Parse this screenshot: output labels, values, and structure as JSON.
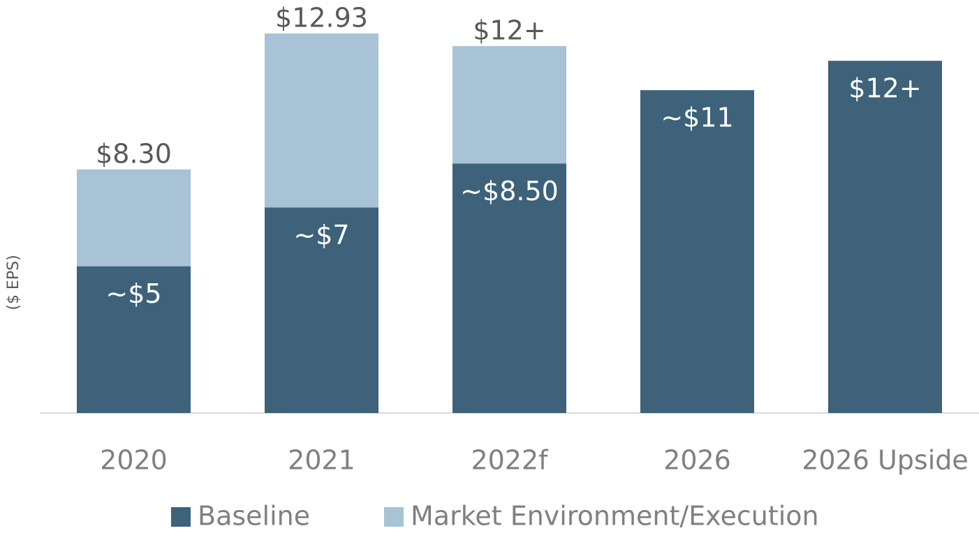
{
  "chart_data": {
    "type": "stacked_bar",
    "y_label": "($ EPS)",
    "categories": [
      "2020",
      "2021",
      "2022f",
      "2026",
      "2026 Upside"
    ],
    "series": [
      {
        "name": "Baseline",
        "color": "#3d627a",
        "values": [
          5,
          7,
          8.5,
          11,
          12
        ],
        "value_labels": [
          "~$5",
          "~$7",
          "~$8.50",
          "~$11",
          "$12+"
        ]
      },
      {
        "name": "Market Environment/Execution",
        "color": "#a8c2d6",
        "values": [
          3.3,
          5.93,
          4.0,
          null,
          null
        ]
      }
    ],
    "totals": [
      8.3,
      12.93,
      12.5,
      null,
      null
    ],
    "total_labels": [
      "$8.30",
      "$12.93",
      "$12+",
      null,
      null
    ],
    "ylim": [
      0,
      14
    ],
    "grid": false,
    "legend": "bottom"
  }
}
